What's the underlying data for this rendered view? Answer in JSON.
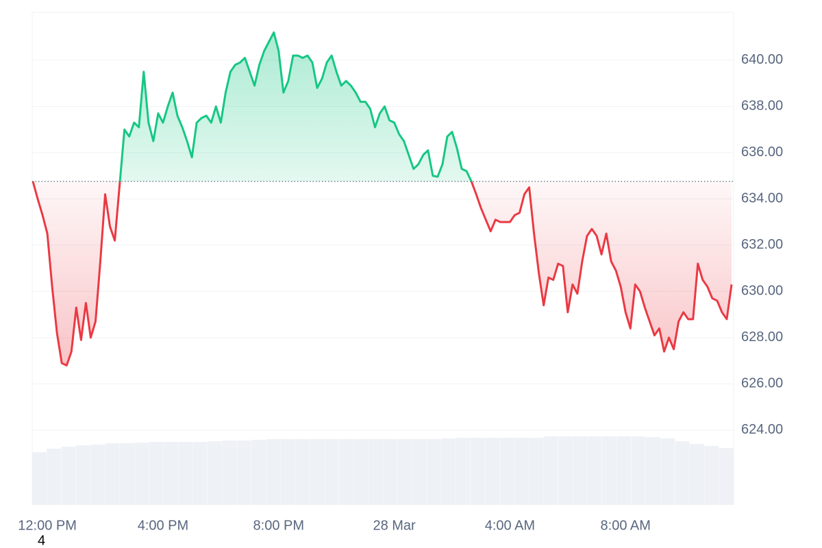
{
  "chart_data": {
    "type": "line",
    "categories": [
      null,
      null,
      null,
      "12:00 PM",
      null,
      null,
      null,
      null,
      null,
      null,
      null,
      null,
      null,
      null,
      null,
      null,
      null,
      null,
      null,
      null,
      null,
      null,
      null,
      null,
      null,
      null,
      null,
      "4:00 PM",
      null,
      null,
      null,
      null,
      null,
      null,
      null,
      null,
      null,
      null,
      null,
      null,
      null,
      null,
      null,
      null,
      null,
      null,
      null,
      null,
      null,
      null,
      null,
      "8:00 PM",
      null,
      null,
      null,
      null,
      null,
      null,
      null,
      null,
      null,
      null,
      null,
      null,
      null,
      null,
      null,
      null,
      null,
      null,
      null,
      null,
      null,
      null,
      null,
      "28 Mar",
      null,
      null,
      null,
      null,
      null,
      null,
      null,
      null,
      null,
      null,
      null,
      null,
      null,
      null,
      null,
      null,
      null,
      null,
      null,
      null,
      null,
      null,
      null,
      "4:00 AM",
      null,
      null,
      null,
      null,
      null,
      null,
      null,
      null,
      null,
      null,
      null,
      null,
      null,
      null,
      null,
      null,
      null,
      null,
      null,
      null,
      null,
      null,
      null,
      "8:00 AM",
      null,
      null,
      null,
      null,
      null,
      null,
      null,
      null,
      null,
      null,
      null,
      null,
      null,
      null,
      null,
      null,
      null,
      null,
      null,
      null,
      null,
      null
    ],
    "values": [
      634.76,
      634.0,
      633.3,
      632.5,
      630.2,
      628.2,
      626.9,
      626.8,
      627.4,
      629.3,
      627.9,
      629.5,
      628.0,
      628.7,
      631.3,
      634.2,
      632.8,
      632.2,
      634.6,
      637.0,
      636.7,
      637.3,
      637.1,
      639.5,
      637.3,
      636.5,
      637.7,
      637.3,
      638.0,
      638.6,
      637.6,
      637.1,
      636.5,
      635.8,
      637.3,
      637.5,
      637.6,
      637.3,
      638.0,
      637.3,
      638.6,
      639.5,
      639.8,
      639.9,
      640.1,
      639.5,
      638.9,
      639.8,
      640.4,
      640.8,
      641.2,
      640.4,
      638.6,
      639.1,
      640.2,
      640.2,
      640.1,
      640.2,
      639.9,
      638.8,
      639.2,
      639.9,
      640.2,
      639.5,
      638.9,
      639.1,
      638.9,
      638.6,
      638.2,
      638.2,
      637.9,
      637.1,
      637.7,
      638.0,
      637.4,
      637.3,
      636.8,
      636.5,
      635.9,
      635.3,
      635.5,
      635.9,
      636.1,
      635.0,
      634.96,
      635.5,
      636.7,
      636.9,
      636.2,
      635.3,
      635.2,
      634.76,
      634.2,
      633.6,
      633.1,
      632.6,
      633.1,
      633.0,
      633.0,
      633.0,
      633.3,
      633.4,
      634.2,
      634.5,
      632.5,
      630.8,
      629.4,
      630.6,
      630.5,
      631.2,
      631.1,
      629.1,
      630.3,
      629.9,
      631.3,
      632.4,
      632.7,
      632.4,
      631.6,
      632.5,
      631.3,
      630.9,
      630.2,
      629.1,
      628.4,
      630.3,
      630.0,
      629.3,
      628.7,
      628.1,
      628.4,
      627.4,
      628.0,
      627.5,
      628.7,
      629.1,
      628.8,
      628.8,
      631.2,
      630.5,
      630.2,
      629.7,
      629.6,
      629.1,
      628.8,
      630.3
    ],
    "baseline": 634.76,
    "up_color": "#16c784",
    "down_color": "#ea3943",
    "ylim": [
      620.77,
      642.07
    ],
    "yticks": [
      {
        "value": 624,
        "label": "624.00"
      },
      {
        "value": 626,
        "label": "626.00"
      },
      {
        "value": 628,
        "label": "628.00"
      },
      {
        "value": 630,
        "label": "630.00"
      },
      {
        "value": 632,
        "label": "632.00"
      },
      {
        "value": 634,
        "label": "634.00"
      },
      {
        "value": 636,
        "label": "636.00"
      },
      {
        "value": 638,
        "label": "638.00"
      },
      {
        "value": 640,
        "label": "640.00"
      }
    ],
    "grid": true,
    "volume": {
      "color": "#eef1f5",
      "ylim": [
        0,
        720
      ],
      "values": [
        77,
        82,
        85,
        87,
        88,
        90,
        90,
        91,
        92,
        92,
        92,
        92,
        93,
        94,
        94,
        95,
        96,
        96,
        96,
        96,
        96,
        96,
        96,
        96,
        96,
        96,
        96,
        96,
        97,
        98,
        98,
        98,
        98,
        98,
        98,
        100,
        100,
        100,
        100,
        100,
        100,
        100,
        99,
        97,
        93,
        89,
        86,
        83
      ]
    },
    "footnote": "4"
  }
}
